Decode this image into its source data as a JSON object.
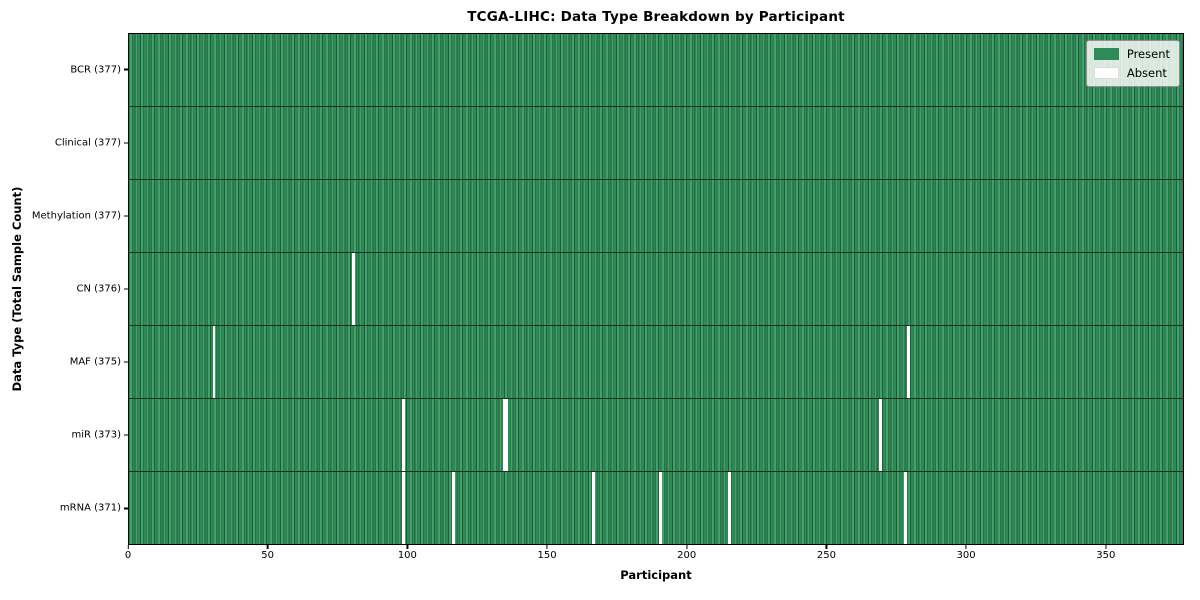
{
  "chart_data": {
    "type": "heatmap",
    "title": "TCGA-LIHC: Data Type Breakdown by Participant",
    "xlabel": "Participant",
    "ylabel": "Data Type (Total Sample Count)",
    "x_ticks": [
      0,
      50,
      100,
      150,
      200,
      250,
      300,
      350
    ],
    "x_max": 378,
    "n_participants": 377,
    "grid": false,
    "legend_position": "upper right",
    "rows": [
      {
        "data_type": "BCR",
        "label": "BCR (377)",
        "present_count": 377,
        "absent_participants": []
      },
      {
        "data_type": "Clinical",
        "label": "Clinical (377)",
        "present_count": 377,
        "absent_participants": []
      },
      {
        "data_type": "Methylation",
        "label": "Methylation (377)",
        "present_count": 377,
        "absent_participants": []
      },
      {
        "data_type": "CN",
        "label": "CN (376)",
        "present_count": 376,
        "absent_participants": [
          80
        ]
      },
      {
        "data_type": "MAF",
        "label": "MAF (375)",
        "present_count": 375,
        "absent_participants": [
          30,
          279
        ]
      },
      {
        "data_type": "miR",
        "label": "miR (373)",
        "present_count": 373,
        "absent_participants": [
          98,
          134,
          135,
          269
        ]
      },
      {
        "data_type": "mRNA",
        "label": "mRNA (371)",
        "present_count": 371,
        "absent_participants": [
          98,
          116,
          166,
          190,
          215,
          278
        ]
      }
    ],
    "legend": [
      {
        "label": "Present",
        "color": "#2e8b57"
      },
      {
        "label": "Absent",
        "color": "#ffffff"
      }
    ],
    "colors": {
      "present": "#2e8b57",
      "present_light": "#45a06c",
      "cell_edge": "#1c5c38",
      "row_separator": "#14301f",
      "absent": "#ffffff",
      "plot_border": "#000000"
    }
  }
}
